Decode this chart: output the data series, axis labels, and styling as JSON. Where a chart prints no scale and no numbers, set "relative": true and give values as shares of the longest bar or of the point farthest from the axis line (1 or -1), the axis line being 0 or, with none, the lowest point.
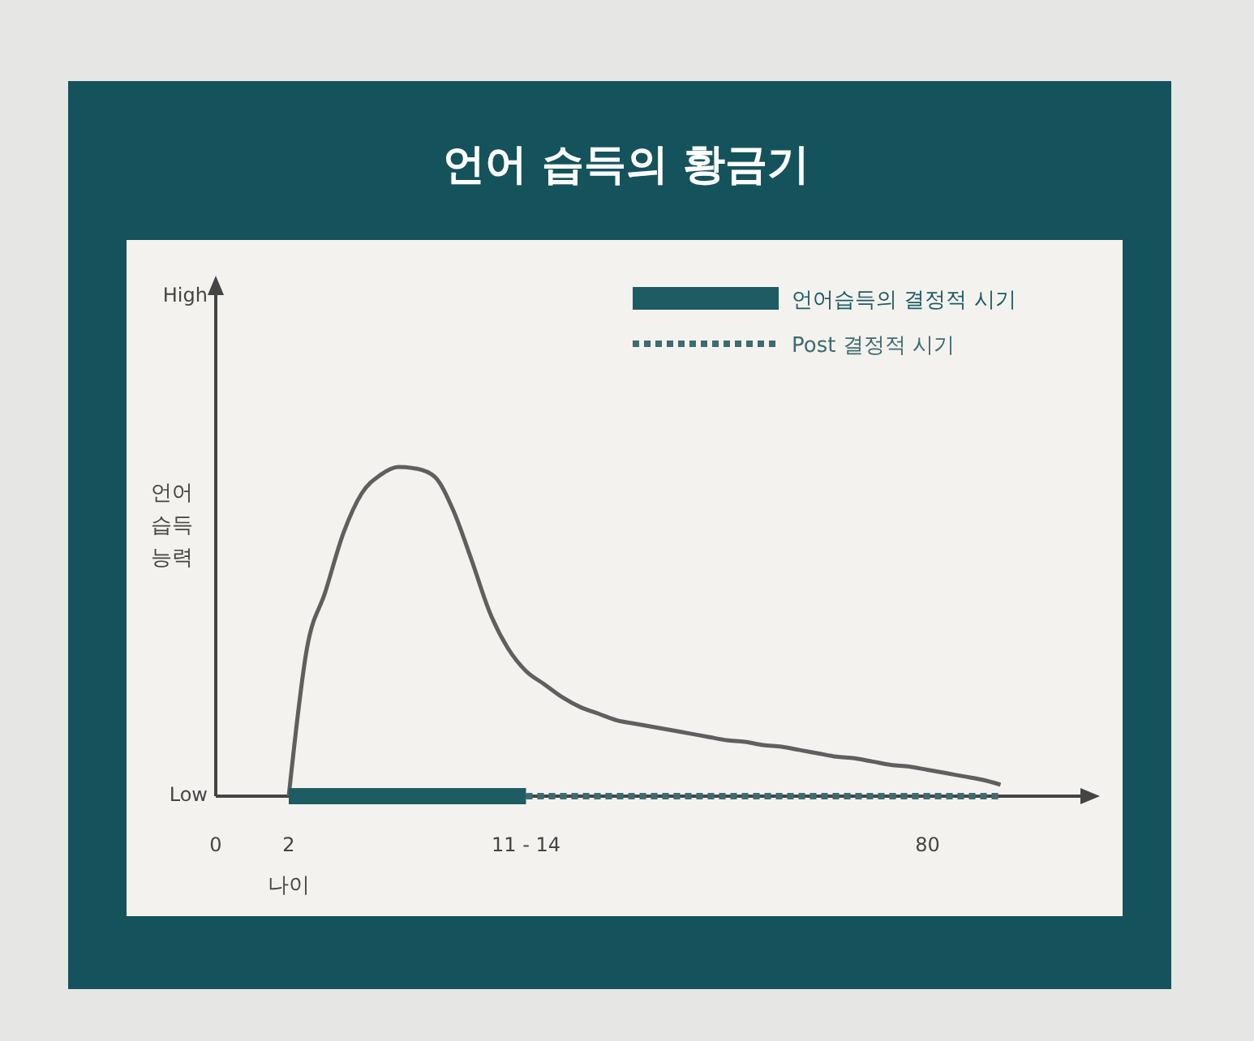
{
  "chart_data": {
    "type": "line",
    "title": "언어 습득의 황금기",
    "xlabel": "나이",
    "ylabel": "언어 습득 능력",
    "relative": true,
    "legend": "top right",
    "categories": [
      "0",
      null,
      null,
      null,
      "2",
      null,
      null,
      null,
      null,
      null,
      null,
      null,
      null,
      null,
      null,
      null,
      null,
      "11 - 14",
      null,
      null,
      null,
      null,
      null,
      null,
      null,
      null,
      null,
      null,
      null,
      null,
      null,
      null,
      null,
      null,
      null,
      null,
      null,
      null,
      null,
      "80",
      null,
      null,
      null,
      null
    ],
    "annotations": [
      "High",
      "Low"
    ],
    "series": [
      {
        "color": "#5f5f5f",
        "line_style": "solid",
        "values": [
          null,
          null,
          null,
          null,
          0,
          0.45,
          0.62,
          0.8,
          0.92,
          0.975,
          1.0,
          0.995,
          0.97,
          0.87,
          0.72,
          0.56,
          0.45,
          0.38,
          0.34,
          0.3,
          0.27,
          0.25,
          0.23,
          0.22,
          0.21,
          0.2,
          0.19,
          0.18,
          0.17,
          0.165,
          0.155,
          0.15,
          0.14,
          0.13,
          0.12,
          0.115,
          0.105,
          0.095,
          0.09,
          0.08,
          0.07,
          0.06,
          0.05,
          0.035
        ]
      },
      {
        "name": "언어습득의 결정적 시기",
        "color": "#1e5c63",
        "line_style": "solid",
        "values": [
          null,
          null,
          null,
          null,
          0,
          0,
          0,
          0,
          0,
          0,
          0,
          0,
          0,
          0,
          0,
          0,
          0,
          0,
          null,
          null,
          null,
          null,
          null,
          null,
          null,
          null,
          null,
          null,
          null,
          null,
          null,
          null,
          null,
          null,
          null,
          null,
          null,
          null,
          null,
          null,
          null,
          null,
          null,
          null
        ]
      },
      {
        "name": "Post 결정적 시기",
        "color": "#3d6b70",
        "line_style": "dashed",
        "values": [
          null,
          null,
          null,
          null,
          null,
          null,
          null,
          null,
          null,
          null,
          null,
          null,
          null,
          null,
          null,
          null,
          null,
          0,
          0,
          0,
          0,
          0,
          0,
          0,
          0,
          0,
          0,
          0,
          0,
          0,
          0,
          0,
          0,
          0,
          0,
          0,
          0,
          0,
          0,
          0,
          0,
          0,
          0,
          0
        ]
      }
    ]
  }
}
